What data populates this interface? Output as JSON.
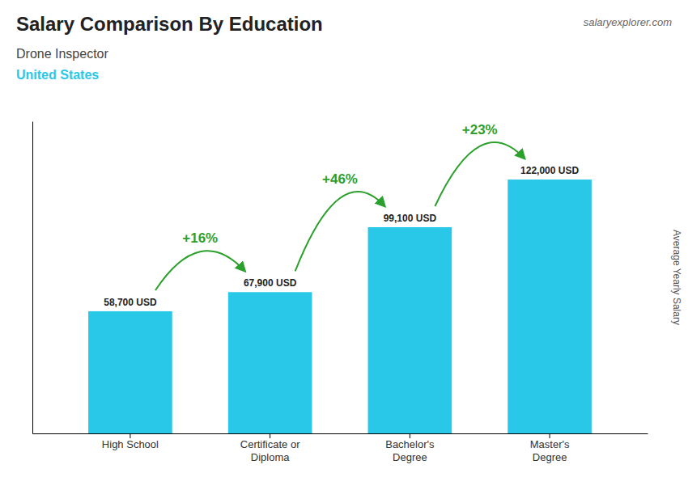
{
  "chart_data": {
    "type": "bar",
    "title": "Salary Comparison By Education",
    "subtitle": [
      "Drone Inspector",
      "United States"
    ],
    "ylabel": "Average Yearly Salary",
    "categories": [
      "High School",
      "Certificate or\nDiploma",
      "Bachelor's\nDegree",
      "Master's\nDegree"
    ],
    "values": [
      58700,
      67900,
      99100,
      122000
    ],
    "value_labels": [
      "58,700 USD",
      "67,900 USD",
      "99,100 USD",
      "122,000 USD"
    ],
    "data_labels": true,
    "color": "#29c8e8",
    "ylim": [
      0,
      150000
    ],
    "grid": false,
    "tick_labels": "x",
    "annotations": [
      {
        "text": "salaryexplorer.com"
      },
      {
        "text": "+16%",
        "from": "High School",
        "to": "Certificate or\nDiploma"
      },
      {
        "text": "+46%",
        "from": "Certificate or\nDiploma",
        "to": "Bachelor's\nDegree"
      },
      {
        "text": "+23%",
        "from": "Bachelor's\nDegree",
        "to": "Master's\nDegree"
      }
    ]
  }
}
